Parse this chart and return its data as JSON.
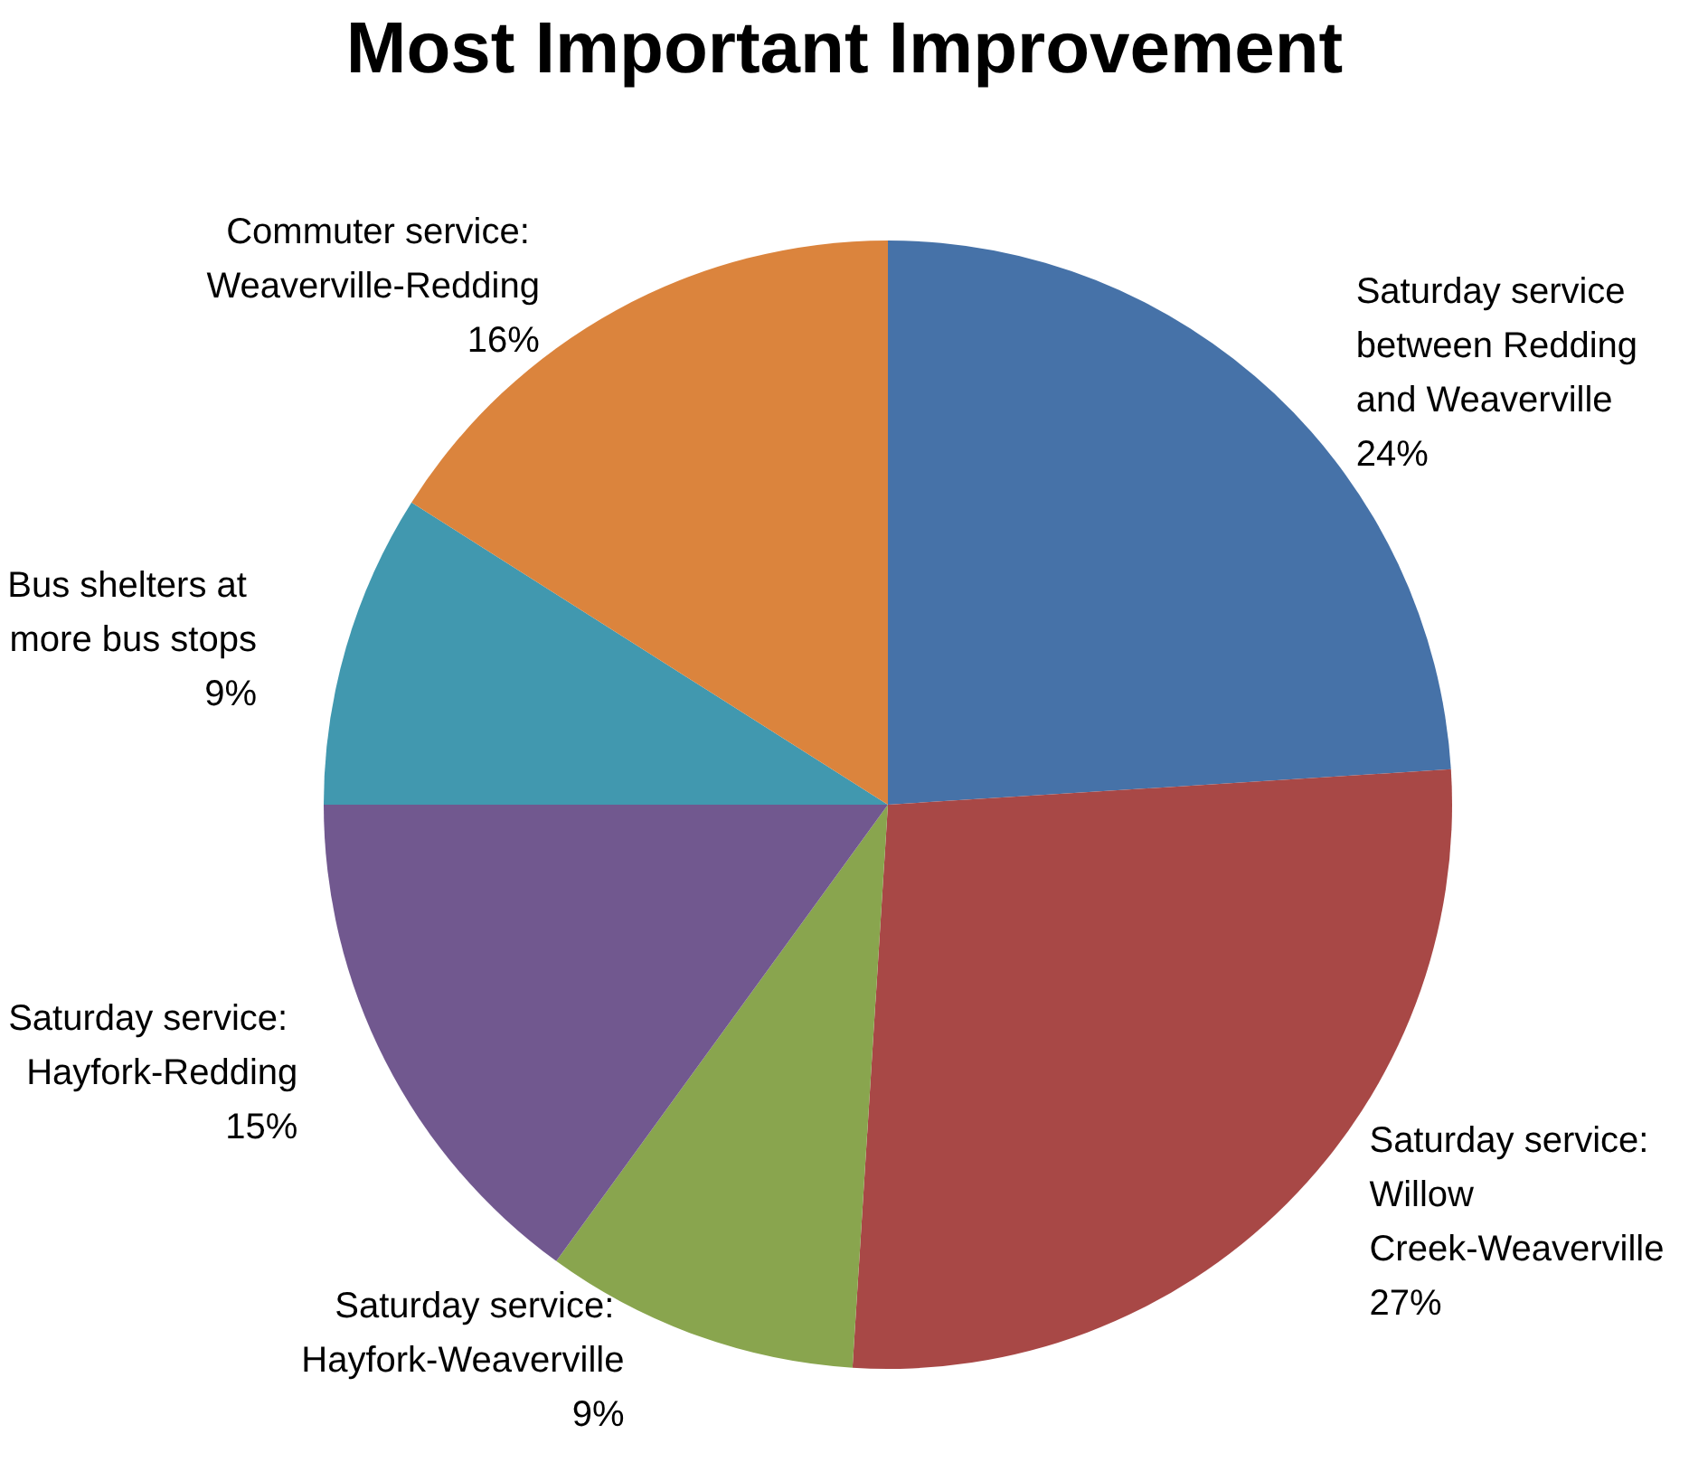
{
  "chart_data": {
    "type": "pie",
    "title": "Most Important Improvement",
    "categories": [
      "Saturday service between Redding and Weaverville",
      "Saturday service: Willow Creek-Weaverville",
      "Saturday service: Hayfork-Weaverville",
      "Saturday service: Hayfork-Redding",
      "Bus shelters at more bus stops",
      "Commuter service: Weaverville-Redding"
    ],
    "values": [
      24,
      27,
      9,
      15,
      9,
      16
    ],
    "value_labels": [
      "24%",
      "27%",
      "9%",
      "15%",
      "9%",
      "16%"
    ],
    "colors": [
      "#4672a8",
      "#a84846",
      "#89a54e",
      "#71588f",
      "#4198af",
      "#db843d"
    ],
    "legend": false
  }
}
